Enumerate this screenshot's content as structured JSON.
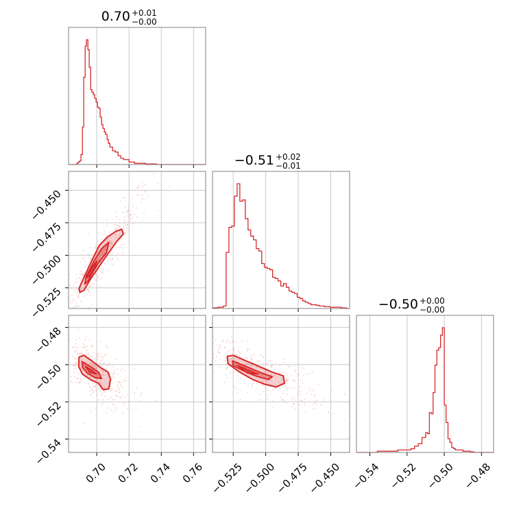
{
  "chart_data": {
    "type": "corner",
    "color": "#d62728",
    "parameters": [
      {
        "title_value": "0.70",
        "title_plus": "+0.01",
        "title_minus": "−0.00",
        "range": [
          0.6825,
          0.7675
        ],
        "ticks": [
          0.7,
          0.72,
          0.74,
          0.76
        ],
        "tick_labels": [
          "0.70",
          "0.72",
          "0.74",
          "0.76"
        ],
        "hist_x": [
          0.6877,
          0.6885,
          0.6894,
          0.6902,
          0.6911,
          0.6919,
          0.6928,
          0.6936,
          0.6945,
          0.6953,
          0.6962,
          0.697,
          0.6979,
          0.6987,
          0.6996,
          0.7004,
          0.7013,
          0.7021,
          0.703,
          0.7038,
          0.7047,
          0.7055,
          0.7064,
          0.7072,
          0.7081,
          0.7098,
          0.7115,
          0.7132,
          0.7149,
          0.7166,
          0.72,
          0.7234,
          0.7268,
          0.7302,
          0.737
        ],
        "hist_y": [
          0.01,
          0.02,
          0.03,
          0.08,
          0.3,
          0.7,
          0.95,
          1.0,
          0.92,
          0.78,
          0.6,
          0.58,
          0.56,
          0.53,
          0.5,
          0.46,
          0.45,
          0.38,
          0.32,
          0.29,
          0.26,
          0.24,
          0.2,
          0.17,
          0.14,
          0.11,
          0.1,
          0.07,
          0.05,
          0.04,
          0.02,
          0.01,
          0.01,
          0.005,
          0.0
        ]
      },
      {
        "title_value": "−0.51",
        "title_plus": "+0.02",
        "title_minus": "−0.01",
        "range": [
          -0.5409,
          -0.4355
        ],
        "ticks": [
          -0.525,
          -0.5,
          -0.475,
          -0.45
        ],
        "tick_labels": [
          "−0.525",
          "−0.500",
          "−0.475",
          "−0.450"
        ],
        "hist_x": [
          -0.5409,
          -0.5367,
          -0.5325,
          -0.5304,
          -0.5283,
          -0.5262,
          -0.5241,
          -0.522,
          -0.5199,
          -0.5178,
          -0.5157,
          -0.5136,
          -0.5115,
          -0.5094,
          -0.5073,
          -0.5052,
          -0.5031,
          -0.501,
          -0.4989,
          -0.4968,
          -0.4947,
          -0.4926,
          -0.4905,
          -0.4884,
          -0.4863,
          -0.4842,
          -0.4821,
          -0.48,
          -0.4779,
          -0.4758,
          -0.4737,
          -0.4716,
          -0.4695,
          -0.4674,
          -0.4653,
          -0.4632,
          -0.4611,
          -0.459,
          -0.4548,
          -0.4506,
          -0.4464,
          -0.4422
        ],
        "hist_y": [
          0.005,
          0.01,
          0.02,
          0.45,
          0.65,
          0.66,
          0.9,
          1.0,
          0.86,
          0.87,
          0.72,
          0.63,
          0.58,
          0.55,
          0.48,
          0.46,
          0.36,
          0.33,
          0.32,
          0.31,
          0.25,
          0.24,
          0.22,
          0.18,
          0.2,
          0.17,
          0.14,
          0.13,
          0.12,
          0.09,
          0.08,
          0.06,
          0.05,
          0.04,
          0.03,
          0.03,
          0.025,
          0.02,
          0.015,
          0.01,
          0.01,
          0.005
        ]
      },
      {
        "title_value": "−0.50",
        "title_plus": "+0.00",
        "title_minus": "−0.00",
        "range": [
          -0.5472,
          -0.4735
        ],
        "ticks": [
          -0.54,
          -0.52,
          -0.5,
          -0.48
        ],
        "tick_labels": [
          "−0.54",
          "−0.52",
          "−0.50",
          "−0.48"
        ],
        "hist_x": [
          -0.536,
          -0.525,
          -0.518,
          -0.516,
          -0.514,
          -0.512,
          -0.51,
          -0.509,
          -0.508,
          -0.507,
          -0.506,
          -0.505,
          -0.504,
          -0.503,
          -0.502,
          -0.501,
          -0.5,
          -0.499,
          -0.498,
          -0.497,
          -0.496,
          -0.495,
          -0.494,
          -0.492,
          -0.49,
          -0.488,
          -0.486
        ],
        "hist_y": [
          0.01,
          0.02,
          0.03,
          0.05,
          0.07,
          0.12,
          0.16,
          0.15,
          0.32,
          0.31,
          0.48,
          0.7,
          0.82,
          0.84,
          0.94,
          1.0,
          0.38,
          0.24,
          0.11,
          0.08,
          0.04,
          0.03,
          0.02,
          0.02,
          0.01,
          0.01,
          0.005
        ]
      }
    ],
    "pairs": [
      {
        "x_param": 0,
        "y_param": 1,
        "contours": [
          [
            [
              0.6895,
              -0.5285
            ],
            [
              0.689,
              -0.5255
            ],
            [
              0.6915,
              -0.5185
            ],
            [
              0.696,
              -0.5065
            ],
            [
              0.7015,
              -0.4925
            ],
            [
              0.7065,
              -0.486
            ],
            [
              0.712,
              -0.4815
            ],
            [
              0.7155,
              -0.48
            ],
            [
              0.7165,
              -0.4835
            ],
            [
              0.712,
              -0.49
            ],
            [
              0.706,
              -0.5005
            ],
            [
              0.701,
              -0.5095
            ],
            [
              0.696,
              -0.5185
            ],
            [
              0.692,
              -0.527
            ]
          ],
          [
            [
              0.6925,
              -0.522
            ],
            [
              0.6935,
              -0.516
            ],
            [
              0.6985,
              -0.504
            ],
            [
              0.703,
              -0.495
            ],
            [
              0.7075,
              -0.49
            ],
            [
              0.706,
              -0.498
            ],
            [
              0.701,
              -0.506
            ],
            [
              0.6975,
              -0.513
            ],
            [
              0.6945,
              -0.52
            ]
          ],
          [
            [
              0.6935,
              -0.5175
            ],
            [
              0.6975,
              -0.5085
            ],
            [
              0.7,
              -0.5045
            ],
            [
              0.6985,
              -0.51
            ],
            [
              0.6955,
              -0.516
            ]
          ]
        ]
      },
      {
        "x_param": 0,
        "y_param": 2,
        "contours": [
          [
            [
              0.689,
              -0.496
            ],
            [
              0.692,
              -0.495
            ],
            [
              0.697,
              -0.498
            ],
            [
              0.703,
              -0.502
            ],
            [
              0.707,
              -0.504
            ],
            [
              0.7085,
              -0.508
            ],
            [
              0.7075,
              -0.513
            ],
            [
              0.704,
              -0.5135
            ],
            [
              0.701,
              -0.51
            ],
            [
              0.696,
              -0.508
            ],
            [
              0.691,
              -0.505
            ],
            [
              0.6888,
              -0.501
            ]
          ],
          [
            [
              0.691,
              -0.4985
            ],
            [
              0.696,
              -0.501
            ],
            [
              0.701,
              -0.504
            ],
            [
              0.703,
              -0.5075
            ],
            [
              0.699,
              -0.507
            ],
            [
              0.694,
              -0.5045
            ],
            [
              0.6912,
              -0.5015
            ]
          ],
          [
            [
              0.693,
              -0.501
            ],
            [
              0.697,
              -0.503
            ],
            [
              0.6995,
              -0.505
            ],
            [
              0.6955,
              -0.504
            ]
          ]
        ]
      },
      {
        "x_param": 1,
        "y_param": 2,
        "contours": [
          [
            [
              -0.5295,
              -0.4955
            ],
            [
              -0.525,
              -0.495
            ],
            [
              -0.515,
              -0.498
            ],
            [
              -0.505,
              -0.501
            ],
            [
              -0.495,
              -0.504
            ],
            [
              -0.4865,
              -0.506
            ],
            [
              -0.4855,
              -0.51
            ],
            [
              -0.492,
              -0.512
            ],
            [
              -0.501,
              -0.5105
            ],
            [
              -0.51,
              -0.508
            ],
            [
              -0.52,
              -0.504
            ],
            [
              -0.529,
              -0.4995
            ]
          ],
          [
            [
              -0.5255,
              -0.498
            ],
            [
              -0.515,
              -0.501
            ],
            [
              -0.505,
              -0.504
            ],
            [
              -0.495,
              -0.5065
            ],
            [
              -0.498,
              -0.508
            ],
            [
              -0.508,
              -0.506
            ],
            [
              -0.518,
              -0.503
            ],
            [
              -0.525,
              -0.5005
            ]
          ],
          [
            [
              -0.5215,
              -0.5005
            ],
            [
              -0.513,
              -0.503
            ],
            [
              -0.506,
              -0.505
            ],
            [
              -0.514,
              -0.5045
            ]
          ]
        ]
      }
    ]
  }
}
